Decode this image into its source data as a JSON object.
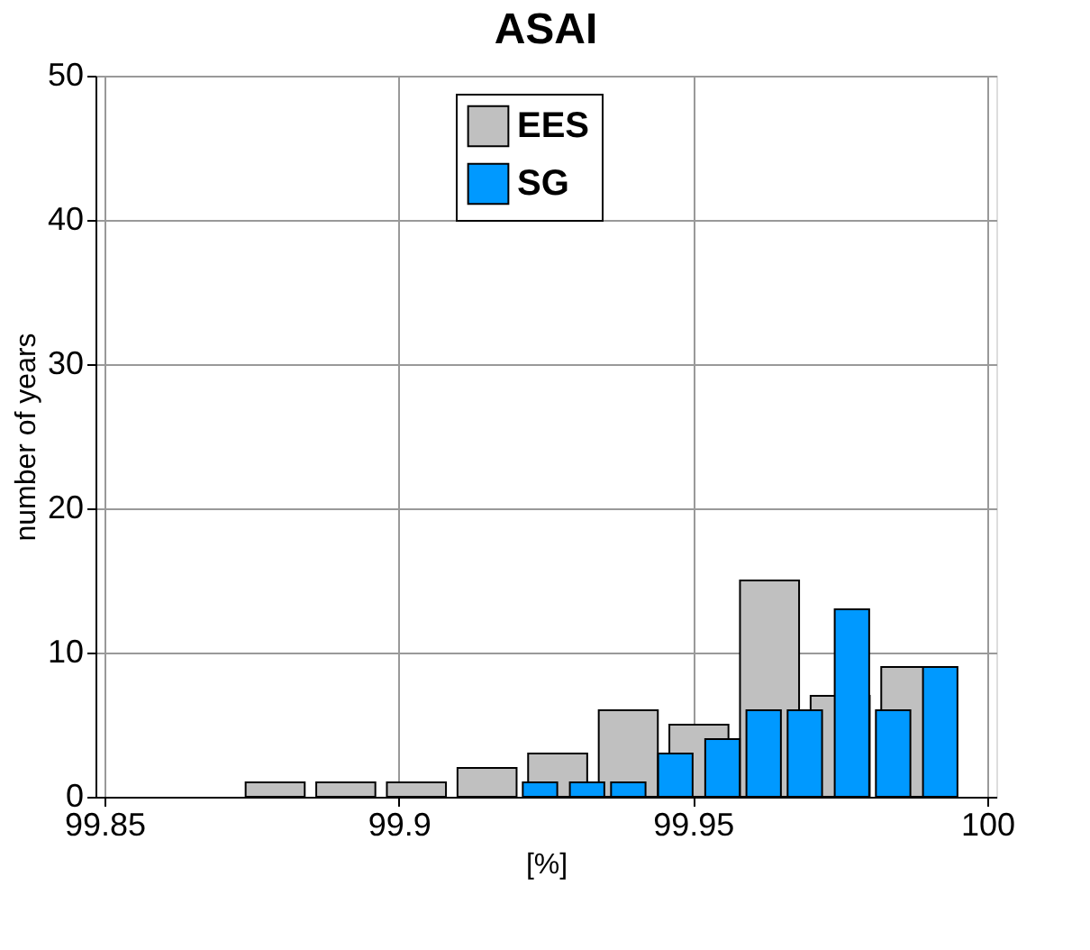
{
  "chart_data": {
    "type": "bar",
    "title": "ASAI",
    "xlabel": "[%]",
    "ylabel": "number of years",
    "xlim": [
      99.85,
      100
    ],
    "xticks": [
      99.85,
      99.9,
      99.95,
      100
    ],
    "ylim": [
      0,
      50
    ],
    "yticks": [
      0,
      10,
      20,
      30,
      40,
      50
    ],
    "grid": true,
    "legend": "top",
    "series": [
      {
        "name": "EES",
        "color": "#c0c0c0",
        "x": [
          99.879,
          99.891,
          99.903,
          99.915,
          99.927,
          99.939,
          99.951,
          99.963,
          99.975,
          99.987
        ],
        "values": [
          1,
          1,
          1,
          2,
          3,
          6,
          5,
          15,
          7,
          9
        ]
      },
      {
        "name": "SG",
        "color": "#0099ff",
        "x": [
          99.924,
          99.932,
          99.939,
          99.947,
          99.955,
          99.962,
          99.969,
          99.977,
          99.984,
          99.992
        ],
        "values": [
          1,
          1,
          1,
          3,
          4,
          6,
          6,
          13,
          6,
          9
        ]
      }
    ]
  }
}
